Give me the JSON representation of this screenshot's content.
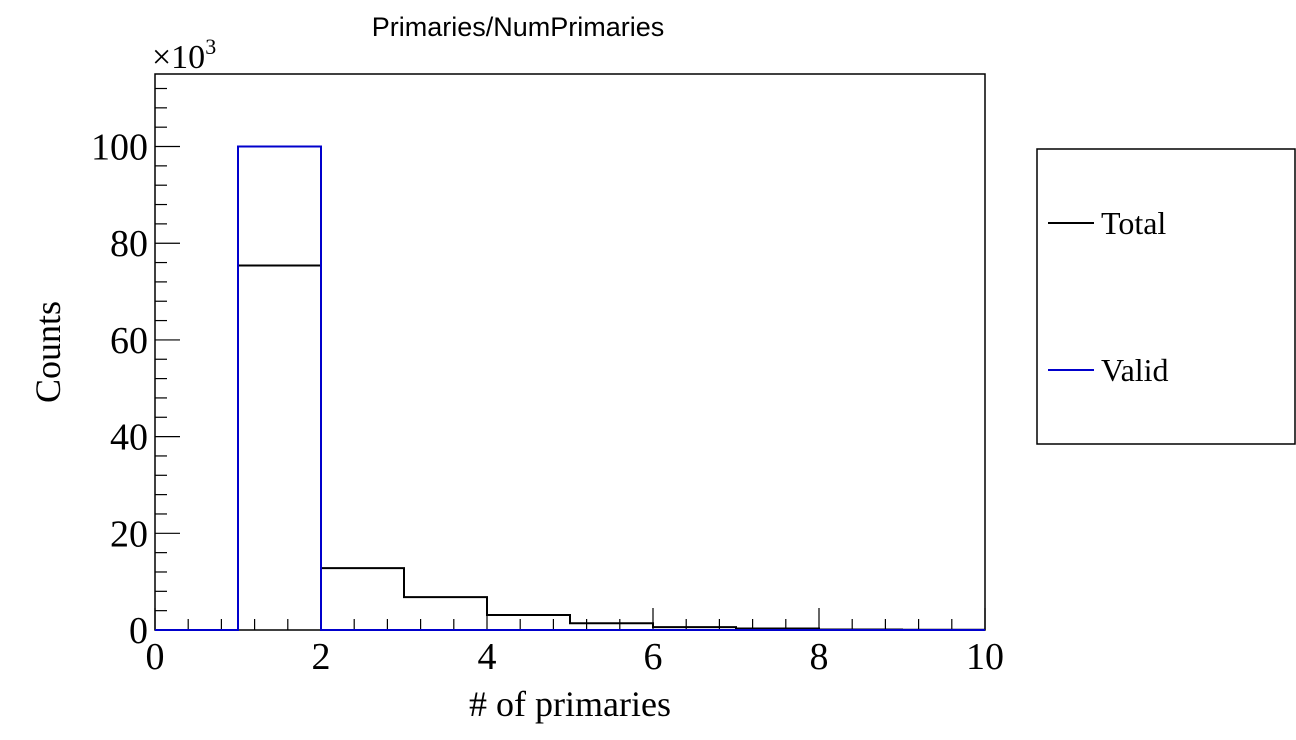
{
  "chart_data": {
    "type": "line",
    "title": "Primaries/NumPrimaries",
    "xlabel": "# of primaries",
    "ylabel": "Counts",
    "y_multiplier": "×10",
    "y_multiplier_exp": "3",
    "xlim": [
      0,
      10
    ],
    "ylim": [
      0,
      115
    ],
    "x_ticks": [
      "0",
      "2",
      "4",
      "6",
      "8",
      "10"
    ],
    "y_ticks": [
      "0",
      "20",
      "40",
      "60",
      "80",
      "100"
    ],
    "bin_edges": [
      0,
      1,
      2,
      3,
      4,
      5,
      6,
      7,
      8,
      9,
      10
    ],
    "series": [
      {
        "name": "Total",
        "color": "#000000",
        "values": [
          0,
          75.4,
          12.8,
          6.8,
          3.1,
          1.4,
          0.6,
          0.3,
          0.1,
          0.05
        ]
      },
      {
        "name": "Valid",
        "color": "#0000cc",
        "values": [
          0,
          100,
          0,
          0,
          0,
          0,
          0,
          0,
          0,
          0
        ]
      }
    ],
    "legend_position": "right",
    "grid": false
  }
}
